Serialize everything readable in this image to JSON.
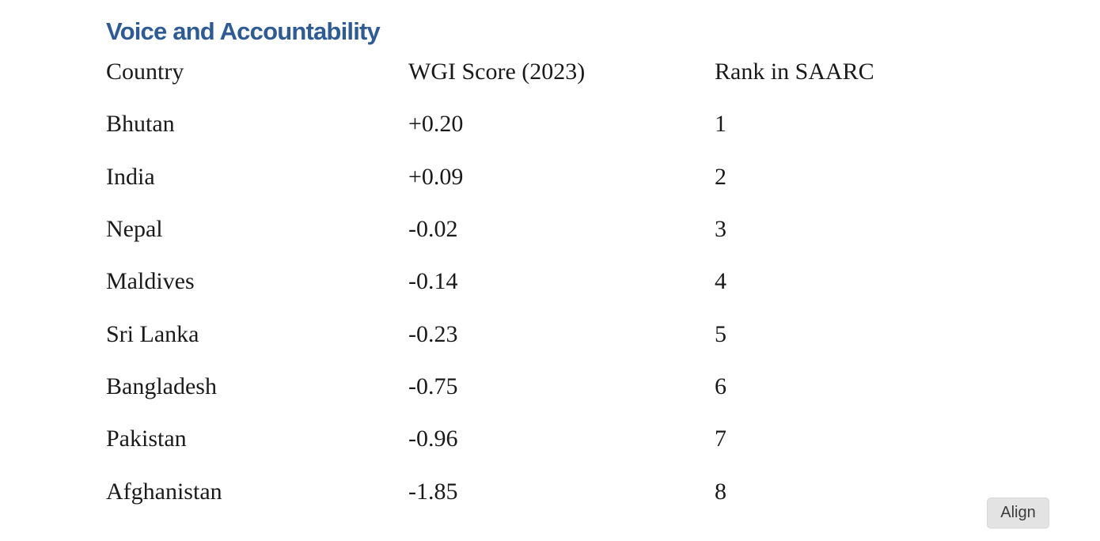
{
  "heading": {
    "text": "Voice and Accountability"
  },
  "colors": {
    "heading": "#2F5B94",
    "body_text": "#1A1A1A",
    "button_bg": "#E3E3E3",
    "button_text": "#3D3D3D",
    "page_bg": "#FFFFFF"
  },
  "table": {
    "columns": [
      "Country",
      "WGI Score (2023)",
      "Rank in SAARC"
    ],
    "rows": [
      {
        "country": "Bhutan",
        "score": "+0.20",
        "rank": "1"
      },
      {
        "country": "India",
        "score": "+0.09",
        "rank": "2"
      },
      {
        "country": "Nepal",
        "score": "-0.02",
        "rank": "3"
      },
      {
        "country": "Maldives",
        "score": "-0.14",
        "rank": "4"
      },
      {
        "country": "Sri Lanka",
        "score": "-0.23",
        "rank": "5"
      },
      {
        "country": "Bangladesh",
        "score": "-0.75",
        "rank": "6"
      },
      {
        "country": "Pakistan",
        "score": "-0.96",
        "rank": "7"
      },
      {
        "country": "Afghanistan",
        "score": "-1.85",
        "rank": "8"
      }
    ]
  },
  "align_button": {
    "label": "Align"
  }
}
